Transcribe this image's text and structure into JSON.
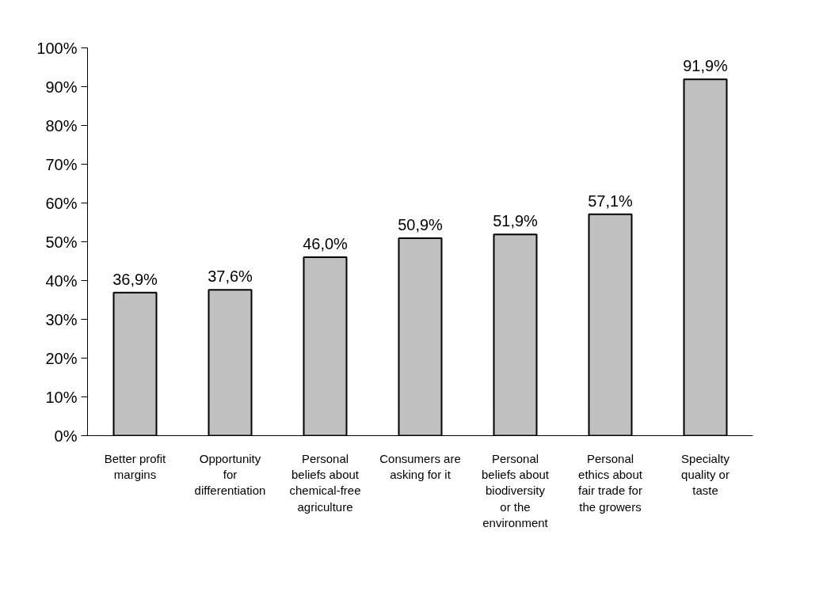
{
  "chart_data": {
    "type": "bar",
    "categories": [
      "Better profit margins",
      "Opportunity for differentiation",
      "Personal beliefs about chemical-free agriculture",
      "Consumers are asking for it",
      "Personal beliefs about biodiversity or the environment",
      "Personal ethics about fair trade for the growers",
      "Specialty quality or taste"
    ],
    "values": [
      36.9,
      37.6,
      46.0,
      50.9,
      51.9,
      57.1,
      91.9
    ],
    "value_labels": [
      "36,9%",
      "37,6%",
      "46,0%",
      "50,9%",
      "51,9%",
      "57,1%",
      "91,9%"
    ],
    "color": "#c0c0c0",
    "ylim": [
      0,
      100
    ],
    "yticks": [
      {
        "value": 0,
        "label": "0%"
      },
      {
        "value": 10,
        "label": "10%"
      },
      {
        "value": 20,
        "label": "20%"
      },
      {
        "value": 30,
        "label": "30%"
      },
      {
        "value": 40,
        "label": "40%"
      },
      {
        "value": 50,
        "label": "50%"
      },
      {
        "value": 60,
        "label": "60%"
      },
      {
        "value": 70,
        "label": "70%"
      },
      {
        "value": 80,
        "label": "80%"
      },
      {
        "value": 90,
        "label": "90%"
      },
      {
        "value": 100,
        "label": "100%"
      }
    ],
    "grid": false
  }
}
